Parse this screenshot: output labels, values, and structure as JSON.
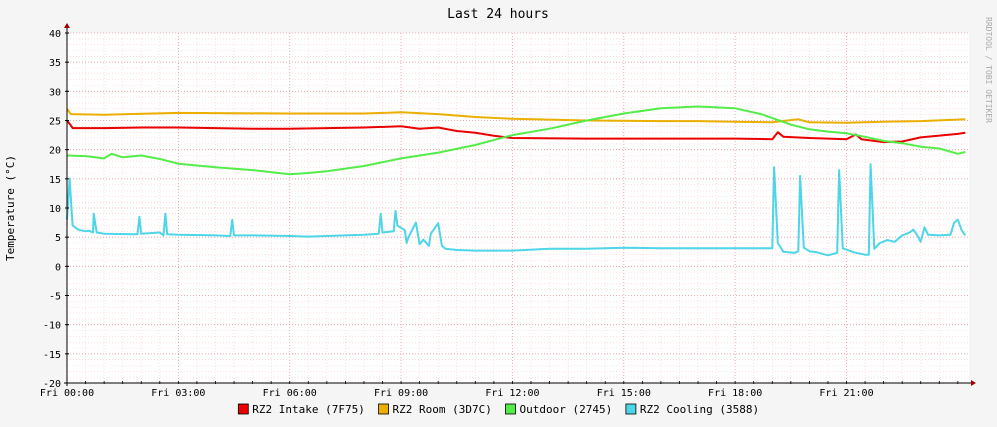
{
  "chart_data": {
    "type": "line",
    "title": "Last 24 hours",
    "ylabel": "Temperature (°C)",
    "watermark": "RRDTOOL / TOBI OETIKER",
    "ylim": [
      -20,
      40
    ],
    "yticks": [
      40,
      35,
      30,
      25,
      20,
      15,
      10,
      5,
      0,
      -5,
      -10,
      -15,
      -20
    ],
    "xlim_hours": [
      0,
      24.3
    ],
    "xticks": [
      {
        "label": "Fri 00:00",
        "hour": 0
      },
      {
        "label": "Fri 03:00",
        "hour": 3
      },
      {
        "label": "Fri 06:00",
        "hour": 6
      },
      {
        "label": "Fri 09:00",
        "hour": 9
      },
      {
        "label": "Fri 12:00",
        "hour": 12
      },
      {
        "label": "Fri 15:00",
        "hour": 15
      },
      {
        "label": "Fri 18:00",
        "hour": 18
      },
      {
        "label": "Fri 21:00",
        "hour": 21
      }
    ],
    "grid": true,
    "legend_placement": "bottom",
    "series": [
      {
        "name": "RZ2 Intake (7F75)",
        "color": "#ea0000",
        "points": [
          [
            0,
            25
          ],
          [
            0.1,
            24.2
          ],
          [
            0.15,
            23.7
          ],
          [
            1,
            23.7
          ],
          [
            2,
            23.8
          ],
          [
            3,
            23.8
          ],
          [
            4,
            23.7
          ],
          [
            5,
            23.6
          ],
          [
            6,
            23.6
          ],
          [
            7,
            23.7
          ],
          [
            8,
            23.8
          ],
          [
            9,
            24
          ],
          [
            9.5,
            23.6
          ],
          [
            10,
            23.8
          ],
          [
            10.5,
            23.2
          ],
          [
            11,
            22.9
          ],
          [
            11.5,
            22.4
          ],
          [
            12,
            22
          ],
          [
            14,
            21.9
          ],
          [
            16,
            21.9
          ],
          [
            17,
            21.9
          ],
          [
            18,
            21.9
          ],
          [
            19,
            21.8
          ],
          [
            19.15,
            23
          ],
          [
            19.3,
            22.2
          ],
          [
            20,
            22
          ],
          [
            21,
            21.8
          ],
          [
            21.25,
            22.6
          ],
          [
            21.4,
            21.8
          ],
          [
            22,
            21.3
          ],
          [
            22.5,
            21.4
          ],
          [
            23,
            22.1
          ],
          [
            24,
            22.7
          ],
          [
            24.2,
            22.9
          ]
        ]
      },
      {
        "name": "RZ2 Room (3D7C)",
        "color": "#eaaf00",
        "points": [
          [
            0,
            27
          ],
          [
            0.1,
            26.1
          ],
          [
            1,
            26
          ],
          [
            3,
            26.3
          ],
          [
            6,
            26.2
          ],
          [
            8,
            26.2
          ],
          [
            9,
            26.4
          ],
          [
            10,
            26.1
          ],
          [
            11,
            25.6
          ],
          [
            12,
            25.3
          ],
          [
            14,
            25
          ],
          [
            16,
            24.9
          ],
          [
            17,
            24.9
          ],
          [
            18,
            24.8
          ],
          [
            19,
            24.7
          ],
          [
            19.7,
            25.2
          ],
          [
            20,
            24.7
          ],
          [
            21,
            24.6
          ],
          [
            22,
            24.8
          ],
          [
            23,
            24.9
          ],
          [
            24.2,
            25.2
          ]
        ]
      },
      {
        "name": "Outdoor (2745)",
        "color": "#54ec48",
        "points": [
          [
            0,
            19
          ],
          [
            0.5,
            18.9
          ],
          [
            1,
            18.5
          ],
          [
            1.2,
            19.3
          ],
          [
            1.5,
            18.7
          ],
          [
            2,
            19
          ],
          [
            2.5,
            18.4
          ],
          [
            3,
            17.6
          ],
          [
            4,
            17
          ],
          [
            5,
            16.5
          ],
          [
            6,
            15.8
          ],
          [
            6.5,
            16
          ],
          [
            7,
            16.3
          ],
          [
            8,
            17.2
          ],
          [
            9,
            18.5
          ],
          [
            10,
            19.5
          ],
          [
            11,
            20.8
          ],
          [
            12,
            22.5
          ],
          [
            13,
            23.6
          ],
          [
            14,
            25
          ],
          [
            15,
            26.2
          ],
          [
            16,
            27.1
          ],
          [
            17,
            27.4
          ],
          [
            18,
            27.1
          ],
          [
            18.7,
            26.1
          ],
          [
            19.5,
            24.3
          ],
          [
            20,
            23.5
          ],
          [
            20.5,
            23.1
          ],
          [
            21,
            22.8
          ],
          [
            21.5,
            22.2
          ],
          [
            22,
            21.5
          ],
          [
            22.5,
            21.1
          ],
          [
            23,
            20.5
          ],
          [
            23.5,
            20.2
          ],
          [
            24,
            19.3
          ],
          [
            24.2,
            19.6
          ]
        ]
      },
      {
        "name": "RZ2 Cooling (3588)",
        "color": "#4dd5e8",
        "points": [
          [
            0,
            8
          ],
          [
            0.07,
            15
          ],
          [
            0.15,
            7
          ],
          [
            0.3,
            6.3
          ],
          [
            0.5,
            6
          ],
          [
            0.6,
            6.1
          ],
          [
            0.7,
            5.8
          ],
          [
            0.72,
            9
          ],
          [
            0.8,
            5.8
          ],
          [
            1,
            5.6
          ],
          [
            1.9,
            5.5
          ],
          [
            1.95,
            8.5
          ],
          [
            2,
            5.6
          ],
          [
            2.5,
            5.8
          ],
          [
            2.6,
            5.3
          ],
          [
            2.65,
            9
          ],
          [
            2.7,
            5.5
          ],
          [
            3,
            5.4
          ],
          [
            4,
            5.3
          ],
          [
            4.4,
            5.2
          ],
          [
            4.45,
            8
          ],
          [
            4.5,
            5.3
          ],
          [
            5,
            5.3
          ],
          [
            6,
            5.2
          ],
          [
            6.5,
            5.1
          ],
          [
            7,
            5.2
          ],
          [
            8,
            5.4
          ],
          [
            8.4,
            5.6
          ],
          [
            8.45,
            9
          ],
          [
            8.5,
            5.8
          ],
          [
            8.8,
            6
          ],
          [
            8.85,
            9.5
          ],
          [
            8.9,
            7
          ],
          [
            9.1,
            6.2
          ],
          [
            9.15,
            4
          ],
          [
            9.2,
            5
          ],
          [
            9.4,
            7.5
          ],
          [
            9.5,
            3.8
          ],
          [
            9.6,
            4.6
          ],
          [
            9.75,
            3.5
          ],
          [
            9.8,
            5.6
          ],
          [
            10,
            7.4
          ],
          [
            10.1,
            3.5
          ],
          [
            10.2,
            3
          ],
          [
            10.5,
            2.8
          ],
          [
            11,
            2.7
          ],
          [
            12,
            2.7
          ],
          [
            13,
            3
          ],
          [
            14,
            3
          ],
          [
            15,
            3.2
          ],
          [
            16,
            3.1
          ],
          [
            17,
            3.1
          ],
          [
            18,
            3.1
          ],
          [
            19,
            3.1
          ],
          [
            19.05,
            17
          ],
          [
            19.15,
            4
          ],
          [
            19.3,
            2.5
          ],
          [
            19.6,
            2.3
          ],
          [
            19.7,
            2.6
          ],
          [
            19.75,
            15.5
          ],
          [
            19.85,
            3.2
          ],
          [
            20,
            2.6
          ],
          [
            20.2,
            2.4
          ],
          [
            20.5,
            1.9
          ],
          [
            20.75,
            2.3
          ],
          [
            20.8,
            16.5
          ],
          [
            20.9,
            3.1
          ],
          [
            21.2,
            2.4
          ],
          [
            21.5,
            2
          ],
          [
            21.6,
            2
          ],
          [
            21.65,
            17.5
          ],
          [
            21.75,
            3
          ],
          [
            21.9,
            4
          ],
          [
            22.1,
            4.5
          ],
          [
            22.3,
            4.2
          ],
          [
            22.5,
            5.3
          ],
          [
            22.7,
            5.8
          ],
          [
            22.8,
            6.3
          ],
          [
            22.9,
            5.4
          ],
          [
            23,
            4.2
          ],
          [
            23.1,
            6.7
          ],
          [
            23.2,
            5.4
          ],
          [
            23.5,
            5.3
          ],
          [
            23.8,
            5.4
          ],
          [
            23.9,
            7.5
          ],
          [
            24,
            8
          ],
          [
            24.1,
            6.2
          ],
          [
            24.2,
            5.3
          ]
        ]
      }
    ]
  }
}
